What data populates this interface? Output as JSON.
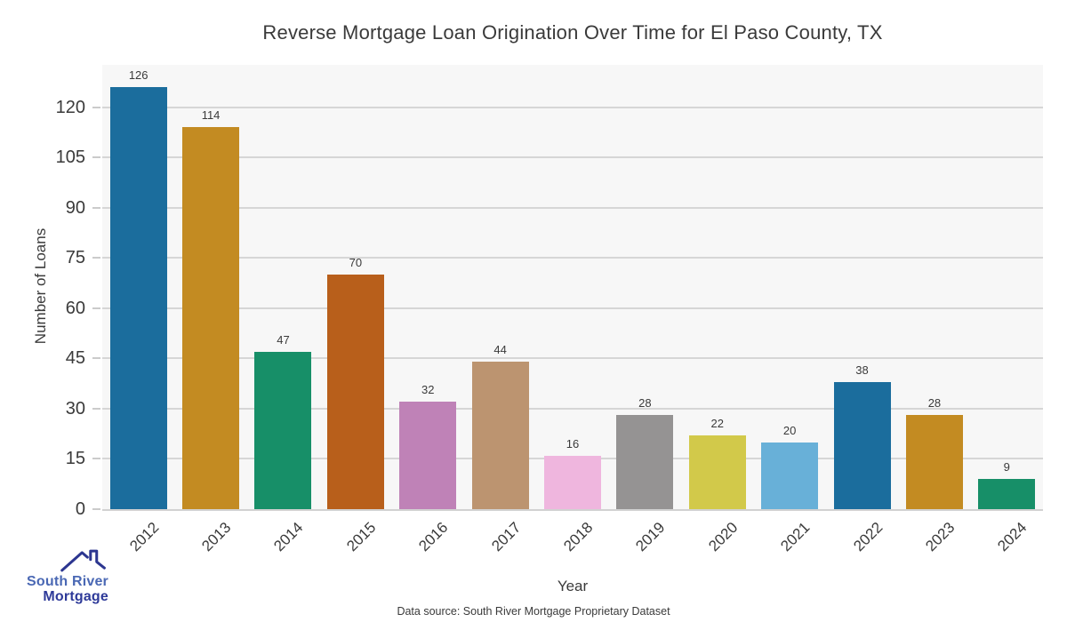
{
  "title": "Reverse Mortgage Loan Origination Over Time for El Paso County, TX",
  "axes": {
    "x_label": "Year",
    "y_label": "Number of Loans",
    "y_ticks": [
      0,
      15,
      30,
      45,
      60,
      75,
      90,
      105,
      120
    ]
  },
  "footer": "Data source: South River Mortgage Proprietary Dataset",
  "logo": {
    "icon": "house-roof-icon",
    "line1": "South River",
    "line2": "Mortgage",
    "line1_color": "#4a68b4",
    "line2_color": "#2e3a99",
    "icon_color": "#2c3690"
  },
  "colors": {
    "plot_background": "#f7f7f7",
    "page_background": "#ffffff",
    "gridline": "#d6d6d6",
    "text": "#3a3a3a"
  },
  "chart_data": {
    "type": "bar",
    "title": "Reverse Mortgage Loan Origination Over Time for El Paso County, TX",
    "xlabel": "Year",
    "ylabel": "Number of Loans",
    "categories": [
      "2012",
      "2013",
      "2014",
      "2015",
      "2016",
      "2017",
      "2018",
      "2019",
      "2020",
      "2021",
      "2022",
      "2023",
      "2024"
    ],
    "values": [
      126,
      114,
      47,
      70,
      32,
      44,
      16,
      28,
      22,
      20,
      38,
      28,
      9
    ],
    "bar_colors": [
      "#1b6d9d",
      "#c38b22",
      "#178f68",
      "#b85f1b",
      "#bf82b7",
      "#bc9470",
      "#efb6de",
      "#959393",
      "#d2c94a",
      "#68b0d8",
      "#1b6d9d",
      "#c38b22",
      "#178f68"
    ],
    "ylim": [
      0,
      132.6
    ],
    "grid": true,
    "value_labels": true,
    "legend": "none"
  }
}
